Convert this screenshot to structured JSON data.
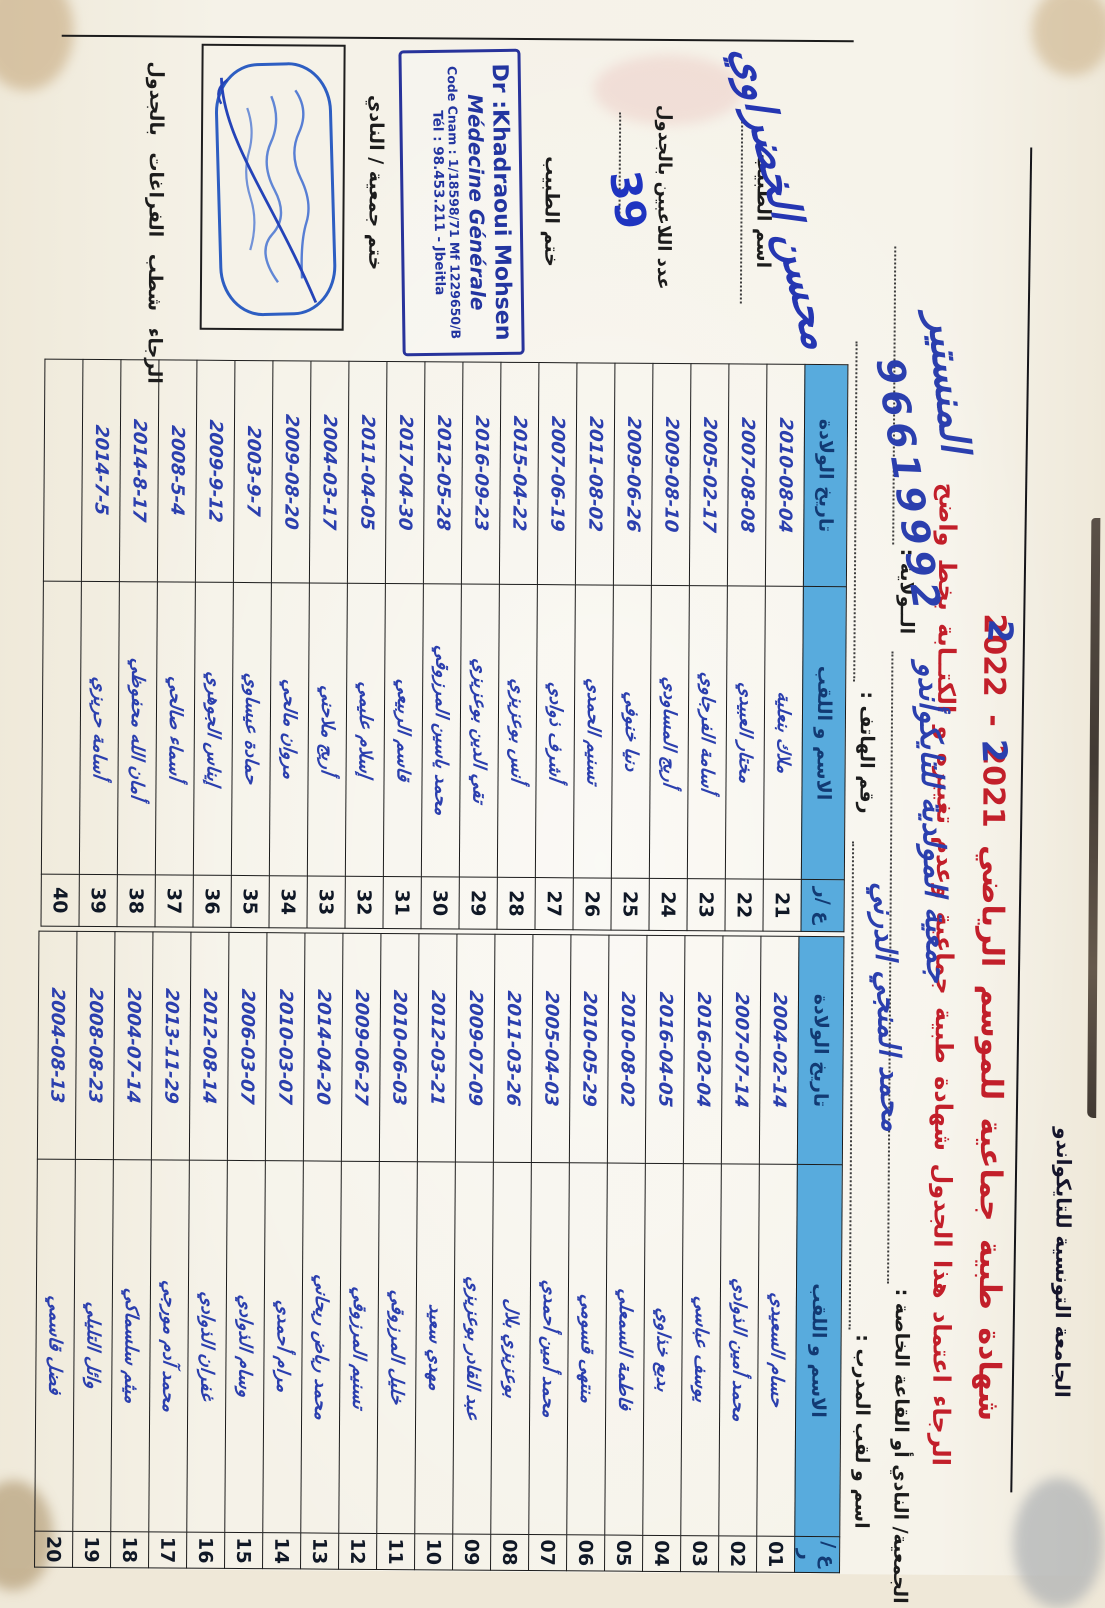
{
  "page": {
    "federation_title": "الجامعة التونسية للتايكواندو",
    "season_line": "شهادة طبية جماعية للموسم الرياضي 2021 - 2022",
    "instruction_line": "الرجاء اعتماد هذا الجدول شهادة طبية جماعية وعدم تغييره و الكتــابة بخط واضح",
    "year_correction_left": "2",
    "year_correction_right": "2"
  },
  "fields": {
    "club_label": "الجمعية/ النادي أو القاعة الخاصة :",
    "club_value": "جمعية المولدية للتايكوأندو",
    "wilaya_label": "الــولاية :",
    "wilaya_value": "المنستير",
    "trainer_label": "اسم و لقب المدرب :",
    "trainer_value": "محمد المنجي الدرني",
    "phone_label": "رقم الهاتف  :",
    "phone_value": "96619992"
  },
  "table_headers": {
    "num": "ع /ر",
    "name": "الاسم و اللقب",
    "dob": "تاريخ الولادة"
  },
  "right_table": {
    "rows": [
      {
        "num": "01",
        "name": "حسام السعيدي",
        "dob": "2004-02-14"
      },
      {
        "num": "02",
        "name": "محمد أمين الذوادي",
        "dob": "2007-07-14"
      },
      {
        "num": "03",
        "name": "يوسف عباسي",
        "dob": "2016-02-04"
      },
      {
        "num": "04",
        "name": "بديع خذاوي",
        "dob": "2016-04-05"
      },
      {
        "num": "05",
        "name": "فاطمة السمعلي",
        "dob": "2010-08-02"
      },
      {
        "num": "06",
        "name": "منتهى قسومي",
        "dob": "2010-05-29"
      },
      {
        "num": "07",
        "name": "محمد أمين أحمدي",
        "dob": "2005-04-03"
      },
      {
        "num": "08",
        "name": "بوعزيزي بلال",
        "dob": "2011-03-26"
      },
      {
        "num": "09",
        "name": "عبد القادر بوعزيزي",
        "dob": "2009-07-09"
      },
      {
        "num": "10",
        "name": "مهدي سعيد",
        "dob": "2012-03-21"
      },
      {
        "num": "11",
        "name": "خليل المرزوقي",
        "dob": "2010-06-03"
      },
      {
        "num": "12",
        "name": "تسنيم المرزوقي",
        "dob": "2009-06-27"
      },
      {
        "num": "13",
        "name": "محمد رياض ريحاني",
        "dob": "2014-04-20"
      },
      {
        "num": "14",
        "name": "مرام أحمدي",
        "dob": "2010-03-07"
      },
      {
        "num": "15",
        "name": "وسام الذوادي",
        "dob": "2006-03-07"
      },
      {
        "num": "16",
        "name": "غفران الذوادي",
        "dob": "2012-08-14"
      },
      {
        "num": "17",
        "name": "محمد آدم مورجي",
        "dob": "2013-11-29"
      },
      {
        "num": "18",
        "name": "ميثم سلسماكي",
        "dob": "2004-07-14"
      },
      {
        "num": "19",
        "name": "وائل التليلي",
        "dob": "2008-08-23"
      },
      {
        "num": "20",
        "name": "فضل قاسمي",
        "dob": "2004-08-13"
      }
    ]
  },
  "left_table": {
    "rows": [
      {
        "num": "21",
        "name": "ملاك بنعلية",
        "dob": "2010-08-04"
      },
      {
        "num": "22",
        "name": "مختار العبيدي",
        "dob": "2007-08-08"
      },
      {
        "num": "23",
        "name": "أسامة الفرجاوي",
        "dob": "2005-02-17"
      },
      {
        "num": "24",
        "name": "أريج المساودي",
        "dob": "2009-08-10"
      },
      {
        "num": "25",
        "name": "دنيا خنوفي",
        "dob": "2009-06-26"
      },
      {
        "num": "26",
        "name": "تسنيم الحمدي",
        "dob": "2011-08-02"
      },
      {
        "num": "27",
        "name": "أشرف ذوادي",
        "dob": "2007-06-19"
      },
      {
        "num": "28",
        "name": "أنس بوعزيزي",
        "dob": "2015-04-22"
      },
      {
        "num": "29",
        "name": "تقي الدين بوعزيزي",
        "dob": "2016-09-23"
      },
      {
        "num": "30",
        "name": "محمد ياسين المرزوقي",
        "dob": "2012-05-28"
      },
      {
        "num": "31",
        "name": "قاسم الربيعي",
        "dob": "2017-04-30"
      },
      {
        "num": "32",
        "name": "إسلام عليمي",
        "dob": "2011-04-05"
      },
      {
        "num": "33",
        "name": "أريج ملاحني",
        "dob": "2004-03-17"
      },
      {
        "num": "34",
        "name": "مروان مالحي",
        "dob": "2009-08-20"
      },
      {
        "num": "35",
        "name": "حمادة عيساوي",
        "dob": "2003-9-7"
      },
      {
        "num": "36",
        "name": "إيناس الجوهري",
        "dob": "2009-9-12"
      },
      {
        "num": "37",
        "name": "أسماء صالحي",
        "dob": "2008-5-4"
      },
      {
        "num": "38",
        "name": "أمان الله محفوظي",
        "dob": "2014-8-17"
      },
      {
        "num": "39",
        "name": "أسامة حريزي",
        "dob": "2014-7-5"
      },
      {
        "num": "40",
        "name": "",
        "dob": ""
      }
    ]
  },
  "stamp_block": {
    "doctor_name_label": "اسم الطبيب",
    "doctor_signature": "محسن الخضراوي",
    "players_count_label": "عدد اللاعبين بالجدول",
    "players_count": "39",
    "doctor_stamp_label": "ختم الطبيب",
    "doctor_stamp": {
      "line1": "Dr :Khadraoui Mohsen",
      "line2": "Médecine Générale",
      "line3": "Code Cnam : 1/18598/71 Mf 1229650/B",
      "line4": "Tél : 98.453.211 - Jbeitla"
    },
    "club_stamp_label": "ختم جمعية / النادي",
    "strike_note": "الرجاء شطب   الفراغات بالجدول"
  },
  "colors": {
    "paper": "#f5f2e8",
    "header_highlight": "#58abdd",
    "printed_red": "#c21f2a",
    "printed_black": "#1c1c1c",
    "handwriting_blue": "#2b3fae",
    "stamp_blue": "#28339b"
  }
}
